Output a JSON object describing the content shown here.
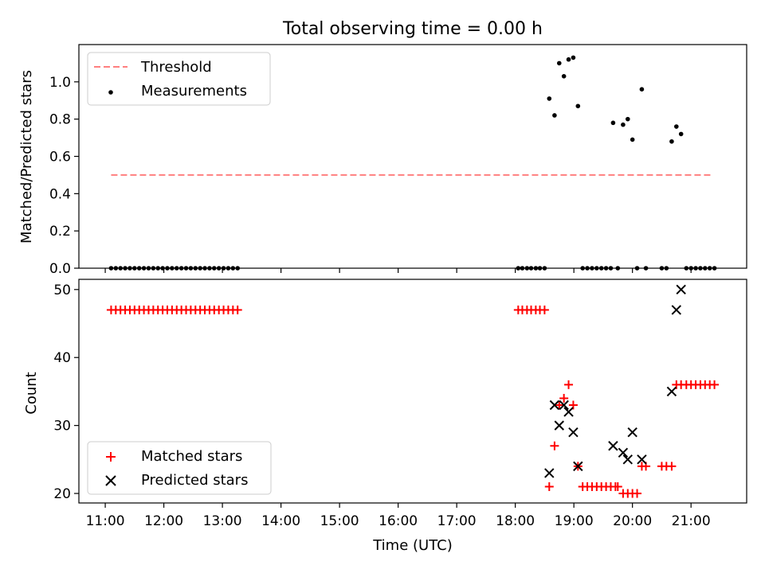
{
  "figure": {
    "title": "Total observing time = 0.00 h"
  },
  "chart_data": [
    {
      "type": "scatter",
      "panel": "top",
      "ylabel": "Matched/Predicted stars",
      "xlabel": "",
      "ylim": [
        0,
        1.2
      ],
      "yticks": [
        0.0,
        0.2,
        0.4,
        0.6,
        0.8,
        1.0
      ],
      "ytick_labels": [
        "0.0",
        "0.2",
        "0.4",
        "0.6",
        "0.8",
        "1.0"
      ],
      "xlim": [
        10.55,
        21.95
      ],
      "xticks": [
        11,
        12,
        13,
        14,
        15,
        16,
        17,
        18,
        19,
        20,
        21
      ],
      "xtick_labels": [
        "11:00",
        "12:00",
        "13:00",
        "14:00",
        "15:00",
        "16:00",
        "17:00",
        "18:00",
        "19:00",
        "20:00",
        "21:00"
      ],
      "show_xtick_labels": false,
      "grid": false,
      "legend": "upper left",
      "threshold": {
        "name": "Threshold",
        "value": 0.5,
        "x_range": [
          11.1,
          21.35
        ],
        "color": "#ff7f7f",
        "dashed": true
      },
      "series": [
        {
          "name": "Measurements",
          "color": "#000000",
          "marker": "dot",
          "points": [
            [
              11.1,
              0
            ],
            [
              11.18,
              0
            ],
            [
              11.26,
              0
            ],
            [
              11.34,
              0
            ],
            [
              11.42,
              0
            ],
            [
              11.5,
              0
            ],
            [
              11.58,
              0
            ],
            [
              11.66,
              0
            ],
            [
              11.74,
              0
            ],
            [
              11.82,
              0
            ],
            [
              11.9,
              0
            ],
            [
              11.98,
              0
            ],
            [
              12.06,
              0
            ],
            [
              12.14,
              0
            ],
            [
              12.22,
              0
            ],
            [
              12.3,
              0
            ],
            [
              12.38,
              0
            ],
            [
              12.46,
              0
            ],
            [
              12.54,
              0
            ],
            [
              12.62,
              0
            ],
            [
              12.7,
              0
            ],
            [
              12.78,
              0
            ],
            [
              12.86,
              0
            ],
            [
              12.94,
              0
            ],
            [
              13.02,
              0
            ],
            [
              13.1,
              0
            ],
            [
              13.18,
              0
            ],
            [
              13.26,
              0
            ],
            [
              18.05,
              0
            ],
            [
              18.12,
              0
            ],
            [
              18.2,
              0
            ],
            [
              18.27,
              0
            ],
            [
              18.35,
              0
            ],
            [
              18.42,
              0
            ],
            [
              18.5,
              0
            ],
            [
              18.58,
              0.91
            ],
            [
              18.67,
              0.82
            ],
            [
              18.75,
              1.1
            ],
            [
              18.83,
              1.03
            ],
            [
              18.91,
              1.12
            ],
            [
              18.99,
              1.13
            ],
            [
              19.07,
              0.87
            ],
            [
              19.15,
              0
            ],
            [
              19.23,
              0
            ],
            [
              19.31,
              0
            ],
            [
              19.39,
              0
            ],
            [
              19.47,
              0
            ],
            [
              19.55,
              0
            ],
            [
              19.63,
              0
            ],
            [
              19.75,
              0
            ],
            [
              19.67,
              0.78
            ],
            [
              19.84,
              0.77
            ],
            [
              19.92,
              0.8
            ],
            [
              20.0,
              0.69
            ],
            [
              20.16,
              0.96
            ],
            [
              20.08,
              0
            ],
            [
              20.23,
              0
            ],
            [
              20.5,
              0
            ],
            [
              20.58,
              0
            ],
            [
              20.67,
              0.68
            ],
            [
              20.75,
              0.76
            ],
            [
              20.83,
              0.72
            ],
            [
              20.92,
              0
            ],
            [
              21.0,
              0
            ],
            [
              21.08,
              0
            ],
            [
              21.16,
              0
            ],
            [
              21.24,
              0
            ],
            [
              21.32,
              0
            ],
            [
              21.4,
              0
            ]
          ]
        }
      ]
    },
    {
      "type": "scatter",
      "panel": "bottom",
      "ylabel": "Count",
      "xlabel": "Time (UTC)",
      "ylim": [
        18.6,
        51.5
      ],
      "yticks": [
        20,
        30,
        40,
        50
      ],
      "ytick_labels": [
        "20",
        "30",
        "40",
        "50"
      ],
      "xlim": [
        10.55,
        21.95
      ],
      "xticks": [
        11,
        12,
        13,
        14,
        15,
        16,
        17,
        18,
        19,
        20,
        21
      ],
      "xtick_labels": [
        "11:00",
        "12:00",
        "13:00",
        "14:00",
        "15:00",
        "16:00",
        "17:00",
        "18:00",
        "19:00",
        "20:00",
        "21:00"
      ],
      "show_xtick_labels": true,
      "grid": false,
      "legend": "lower left",
      "series": [
        {
          "name": "Matched stars",
          "color": "#ff0000",
          "marker": "plus",
          "points": [
            [
              11.1,
              47
            ],
            [
              11.18,
              47
            ],
            [
              11.26,
              47
            ],
            [
              11.34,
              47
            ],
            [
              11.42,
              47
            ],
            [
              11.5,
              47
            ],
            [
              11.58,
              47
            ],
            [
              11.66,
              47
            ],
            [
              11.74,
              47
            ],
            [
              11.82,
              47
            ],
            [
              11.9,
              47
            ],
            [
              11.98,
              47
            ],
            [
              12.06,
              47
            ],
            [
              12.14,
              47
            ],
            [
              12.22,
              47
            ],
            [
              12.3,
              47
            ],
            [
              12.38,
              47
            ],
            [
              12.46,
              47
            ],
            [
              12.54,
              47
            ],
            [
              12.62,
              47
            ],
            [
              12.7,
              47
            ],
            [
              12.78,
              47
            ],
            [
              12.86,
              47
            ],
            [
              12.94,
              47
            ],
            [
              13.02,
              47
            ],
            [
              13.1,
              47
            ],
            [
              13.18,
              47
            ],
            [
              13.26,
              47
            ],
            [
              18.05,
              47
            ],
            [
              18.12,
              47
            ],
            [
              18.2,
              47
            ],
            [
              18.27,
              47
            ],
            [
              18.35,
              47
            ],
            [
              18.42,
              47
            ],
            [
              18.5,
              47
            ],
            [
              18.58,
              21
            ],
            [
              18.67,
              27
            ],
            [
              18.75,
              33
            ],
            [
              18.83,
              34
            ],
            [
              18.91,
              36
            ],
            [
              18.99,
              33
            ],
            [
              19.07,
              24
            ],
            [
              19.15,
              21
            ],
            [
              19.23,
              21
            ],
            [
              19.31,
              21
            ],
            [
              19.39,
              21
            ],
            [
              19.47,
              21
            ],
            [
              19.55,
              21
            ],
            [
              19.63,
              21
            ],
            [
              19.71,
              21
            ],
            [
              19.75,
              21
            ],
            [
              19.84,
              20
            ],
            [
              19.92,
              20
            ],
            [
              20.0,
              20
            ],
            [
              20.08,
              20
            ],
            [
              20.16,
              24
            ],
            [
              20.23,
              24
            ],
            [
              20.5,
              24
            ],
            [
              20.58,
              24
            ],
            [
              20.67,
              24
            ],
            [
              20.75,
              36
            ],
            [
              20.83,
              36
            ],
            [
              20.92,
              36
            ],
            [
              21.0,
              36
            ],
            [
              21.08,
              36
            ],
            [
              21.16,
              36
            ],
            [
              21.24,
              36
            ],
            [
              21.32,
              36
            ],
            [
              21.4,
              36
            ]
          ]
        },
        {
          "name": "Predicted stars",
          "color": "#000000",
          "marker": "x",
          "points": [
            [
              18.58,
              23
            ],
            [
              18.67,
              33
            ],
            [
              18.75,
              30
            ],
            [
              18.83,
              33
            ],
            [
              18.91,
              32
            ],
            [
              18.99,
              29
            ],
            [
              19.07,
              24
            ],
            [
              19.67,
              27
            ],
            [
              19.84,
              26
            ],
            [
              19.92,
              25
            ],
            [
              20.0,
              29
            ],
            [
              20.16,
              25
            ],
            [
              20.67,
              35
            ],
            [
              20.75,
              47
            ],
            [
              20.83,
              50
            ]
          ]
        }
      ]
    }
  ]
}
